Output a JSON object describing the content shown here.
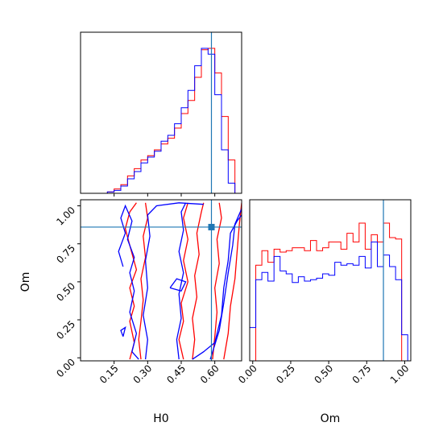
{
  "chart_data": {
    "type": "corner",
    "parameters": [
      "H0",
      "Om"
    ],
    "truth": {
      "H0": 0.585,
      "Om": 0.86
    },
    "truth_color": "#1f77b4",
    "series": [
      {
        "color": "#ff0000"
      },
      {
        "color": "#0000ff"
      }
    ],
    "hist_H0": {
      "xlim": [
        0.0,
        0.72
      ],
      "bins": [
        0.0,
        0.03,
        0.06,
        0.09,
        0.12,
        0.15,
        0.18,
        0.21,
        0.24,
        0.27,
        0.3,
        0.33,
        0.36,
        0.39,
        0.42,
        0.45,
        0.48,
        0.51,
        0.54,
        0.57,
        0.6,
        0.63,
        0.66,
        0.69,
        0.72
      ],
      "red": [
        0,
        0,
        0,
        0,
        0.01,
        0.03,
        0.06,
        0.12,
        0.17,
        0.23,
        0.26,
        0.3,
        0.34,
        0.38,
        0.45,
        0.55,
        0.64,
        0.8,
        0.99,
        1.0,
        0.83,
        0.53,
        0.23,
        0.0
      ],
      "blue": [
        0,
        0,
        0,
        0,
        0.01,
        0.02,
        0.05,
        0.1,
        0.15,
        0.21,
        0.25,
        0.29,
        0.36,
        0.4,
        0.48,
        0.59,
        0.71,
        0.88,
        1.0,
        0.96,
        0.68,
        0.3,
        0.07,
        0.0
      ]
    },
    "hist_Om": {
      "xlim": [
        -0.02,
        1.04
      ],
      "ticks": [
        "0.00",
        "0.25",
        "0.50",
        "0.75",
        "1.00"
      ],
      "tick_values": [
        0,
        0.25,
        0.5,
        0.75,
        1.0
      ],
      "bins": [
        -0.02,
        0.02,
        0.06,
        0.1,
        0.14,
        0.18,
        0.22,
        0.26,
        0.3,
        0.34,
        0.38,
        0.42,
        0.46,
        0.5,
        0.54,
        0.58,
        0.62,
        0.66,
        0.7,
        0.74,
        0.78,
        0.82,
        0.86,
        0.9,
        0.94,
        0.98,
        1.02
      ],
      "red": [
        0.0,
        0.66,
        0.76,
        0.68,
        0.77,
        0.75,
        0.76,
        0.78,
        0.78,
        0.76,
        0.83,
        0.76,
        0.78,
        0.82,
        0.82,
        0.77,
        0.88,
        0.82,
        0.95,
        0.77,
        0.87,
        0.82,
        0.95,
        0.85,
        0.84,
        0.0
      ],
      "blue": [
        0.23,
        0.56,
        0.61,
        0.55,
        0.72,
        0.62,
        0.6,
        0.54,
        0.58,
        0.55,
        0.56,
        0.57,
        0.6,
        0.59,
        0.68,
        0.66,
        0.67,
        0.66,
        0.72,
        0.64,
        0.82,
        0.65,
        0.73,
        0.65,
        0.56,
        0.18
      ]
    },
    "joint": {
      "xlim": [
        0.0,
        0.72
      ],
      "ylim": [
        -0.02,
        1.04
      ],
      "xlabel": "H0",
      "ylabel": "Om",
      "x_ticks": [
        "0.15",
        "0.30",
        "0.45",
        "0.60"
      ],
      "x_tick_values": [
        0.15,
        0.3,
        0.45,
        0.6
      ],
      "y_ticks": [
        "0.00",
        "0.25",
        "0.50",
        "0.75",
        "1.00"
      ],
      "y_tick_values": [
        0,
        0.25,
        0.5,
        0.75,
        1.0
      ],
      "contours": {
        "red": [
          [
            [
              0.22,
              -0.01
            ],
            [
              0.24,
              0.1
            ],
            [
              0.22,
              0.24
            ],
            [
              0.24,
              0.34
            ],
            [
              0.22,
              0.46
            ],
            [
              0.25,
              0.58
            ],
            [
              0.22,
              0.74
            ],
            [
              0.2,
              0.85
            ],
            [
              0.22,
              0.96
            ],
            [
              0.25,
              1.02
            ]
          ],
          [
            [
              0.27,
              -0.01
            ],
            [
              0.26,
              0.12
            ],
            [
              0.27,
              0.24
            ],
            [
              0.28,
              0.38
            ],
            [
              0.27,
              0.52
            ],
            [
              0.29,
              0.66
            ],
            [
              0.28,
              0.8
            ],
            [
              0.3,
              0.92
            ],
            [
              0.29,
              1.02
            ]
          ],
          [
            [
              0.46,
              -0.01
            ],
            [
              0.44,
              0.12
            ],
            [
              0.46,
              0.24
            ],
            [
              0.45,
              0.36
            ],
            [
              0.48,
              0.5
            ],
            [
              0.46,
              0.64
            ],
            [
              0.48,
              0.78
            ],
            [
              0.46,
              0.92
            ],
            [
              0.48,
              1.02
            ]
          ],
          [
            [
              0.5,
              -0.01
            ],
            [
              0.51,
              0.12
            ],
            [
              0.5,
              0.26
            ],
            [
              0.52,
              0.4
            ],
            [
              0.51,
              0.54
            ],
            [
              0.53,
              0.68
            ],
            [
              0.52,
              0.82
            ],
            [
              0.54,
              0.96
            ],
            [
              0.55,
              1.02
            ]
          ],
          [
            [
              0.59,
              -0.01
            ],
            [
              0.6,
              0.14
            ],
            [
              0.61,
              0.3
            ],
            [
              0.6,
              0.46
            ],
            [
              0.62,
              0.62
            ],
            [
              0.61,
              0.78
            ],
            [
              0.63,
              0.92
            ],
            [
              0.62,
              1.02
            ]
          ],
          [
            [
              0.64,
              -0.01
            ],
            [
              0.66,
              0.16
            ],
            [
              0.67,
              0.34
            ],
            [
              0.69,
              0.52
            ],
            [
              0.7,
              0.7
            ],
            [
              0.71,
              0.88
            ],
            [
              0.72,
              1.02
            ]
          ]
        ],
        "blue": [
          [
            [
              0.19,
              0.14
            ],
            [
              0.18,
              0.18
            ],
            [
              0.2,
              0.2
            ],
            [
              0.19,
              0.14
            ]
          ],
          [
            [
              0.19,
              0.6
            ],
            [
              0.17,
              0.7
            ],
            [
              0.2,
              0.82
            ],
            [
              0.18,
              0.92
            ],
            [
              0.2,
              1.0
            ],
            [
              0.23,
              0.9
            ],
            [
              0.21,
              0.78
            ],
            [
              0.24,
              0.66
            ],
            [
              0.22,
              0.56
            ],
            [
              0.24,
              0.44
            ],
            [
              0.22,
              0.3
            ],
            [
              0.25,
              0.16
            ],
            [
              0.23,
              0.04
            ],
            [
              0.26,
              -0.01
            ]
          ],
          [
            [
              0.29,
              -0.01
            ],
            [
              0.3,
              0.12
            ],
            [
              0.28,
              0.28
            ],
            [
              0.3,
              0.46
            ],
            [
              0.29,
              0.64
            ],
            [
              0.31,
              0.8
            ],
            [
              0.3,
              0.94
            ],
            [
              0.34,
              1.0
            ],
            [
              0.44,
              1.02
            ],
            [
              0.55,
              1.01
            ]
          ],
          [
            [
              0.44,
              -0.01
            ],
            [
              0.43,
              0.12
            ],
            [
              0.45,
              0.26
            ],
            [
              0.44,
              0.42
            ],
            [
              0.46,
              0.56
            ],
            [
              0.44,
              0.7
            ],
            [
              0.46,
              0.84
            ],
            [
              0.45,
              0.96
            ],
            [
              0.47,
              1.02
            ]
          ],
          [
            [
              0.4,
              0.46
            ],
            [
              0.43,
              0.52
            ],
            [
              0.47,
              0.5
            ],
            [
              0.45,
              0.44
            ],
            [
              0.4,
              0.46
            ]
          ],
          [
            [
              0.5,
              -0.01
            ],
            [
              0.55,
              0.04
            ],
            [
              0.6,
              0.1
            ],
            [
              0.63,
              0.28
            ],
            [
              0.64,
              0.46
            ],
            [
              0.66,
              0.64
            ],
            [
              0.67,
              0.82
            ],
            [
              0.7,
              0.9
            ],
            [
              0.72,
              0.94
            ]
          ],
          [
            [
              0.58,
              -0.01
            ],
            [
              0.62,
              0.18
            ],
            [
              0.64,
              0.36
            ],
            [
              0.66,
              0.56
            ],
            [
              0.68,
              0.74
            ],
            [
              0.69,
              0.88
            ],
            [
              0.72,
              0.98
            ]
          ]
        ]
      }
    }
  }
}
